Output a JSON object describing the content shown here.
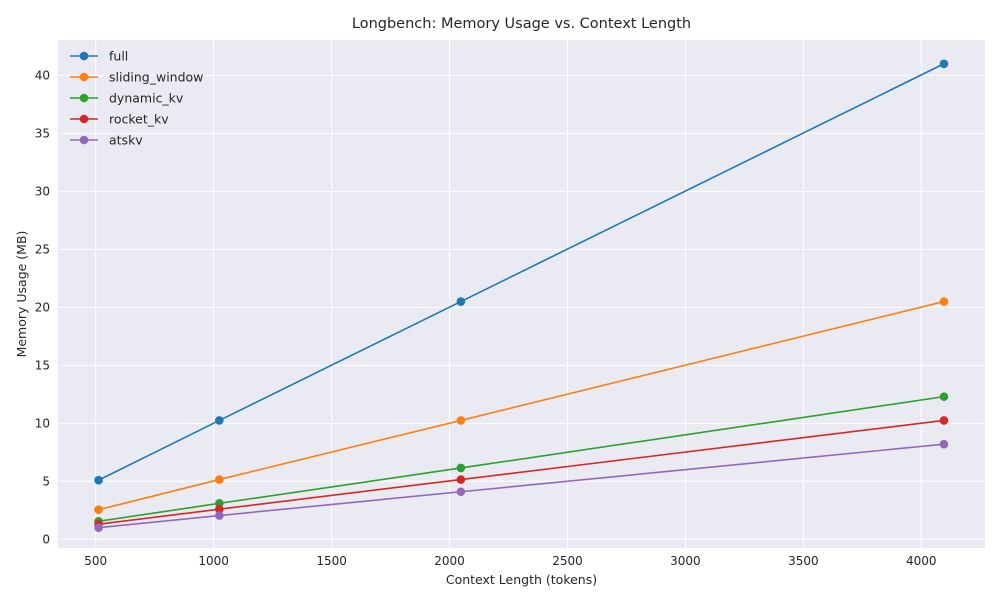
{
  "chart_data": {
    "type": "line",
    "title": "Longbench: Memory Usage vs. Context Length",
    "xlabel": "Context Length (tokens)",
    "ylabel": "Memory Usage (MB)",
    "x": [
      512,
      1024,
      2048,
      4096
    ],
    "xlim": [
      340,
      4270
    ],
    "ylim": [
      -0.75,
      43.05
    ],
    "xticks": [
      500,
      1000,
      1500,
      2000,
      2500,
      3000,
      3500,
      4000
    ],
    "yticks": [
      0,
      5,
      10,
      15,
      20,
      25,
      30,
      35,
      40
    ],
    "grid": true,
    "legend_position": "top-left",
    "marker": "circle",
    "background_color": "#eaeaf2",
    "series": [
      {
        "name": "full",
        "color": "#1f77b4",
        "values": [
          5.1,
          10.25,
          20.5,
          41.0
        ]
      },
      {
        "name": "sliding_window",
        "color": "#ff7f0e",
        "values": [
          2.55,
          5.15,
          10.25,
          20.5
        ]
      },
      {
        "name": "dynamic_kv",
        "color": "#2ca02c",
        "values": [
          1.55,
          3.1,
          6.15,
          12.3
        ]
      },
      {
        "name": "rocket_kv",
        "color": "#d62728",
        "values": [
          1.3,
          2.6,
          5.15,
          10.25
        ]
      },
      {
        "name": "atskv",
        "color": "#9467bd",
        "values": [
          1.0,
          2.05,
          4.1,
          8.2
        ]
      }
    ]
  }
}
